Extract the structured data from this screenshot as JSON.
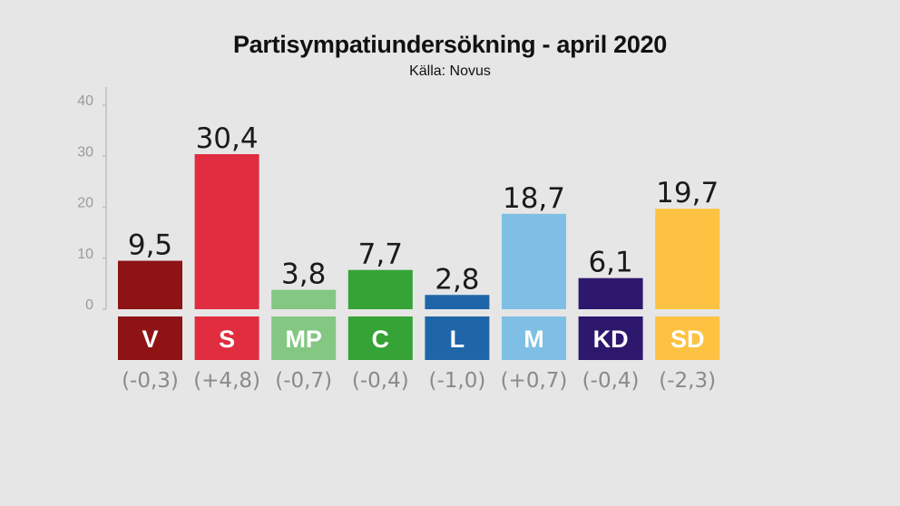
{
  "title": "Partisympatiundersökning - april 2020",
  "subtitle": "Källa: Novus",
  "chart_data": {
    "type": "bar",
    "title": "Partisympatiundersökning - april 2020",
    "subtitle": "Källa: Novus",
    "categories": [
      "V",
      "S",
      "MP",
      "C",
      "L",
      "M",
      "KD",
      "SD"
    ],
    "values": [
      9.5,
      30.4,
      3.8,
      7.7,
      2.8,
      18.7,
      6.1,
      19.7
    ],
    "value_labels": [
      "9,5",
      "30,4",
      "3,8",
      "7,7",
      "2,8",
      "18,7",
      "6,1",
      "19,7"
    ],
    "changes": [
      "(-0,3)",
      "(+4,8)",
      "(-0,7)",
      "(-0,4)",
      "(-1,0)",
      "(+0,7)",
      "(-0,4)",
      "(-2,3)"
    ],
    "colors": [
      "#8e1315",
      "#e02d3f",
      "#83c783",
      "#35a336",
      "#1f66a8",
      "#7fbfe5",
      "#2e186e",
      "#fdc242"
    ],
    "yticks": [
      0,
      10,
      20,
      30,
      40
    ],
    "ylim": [
      0,
      40
    ],
    "grid": false,
    "legend": "none"
  }
}
